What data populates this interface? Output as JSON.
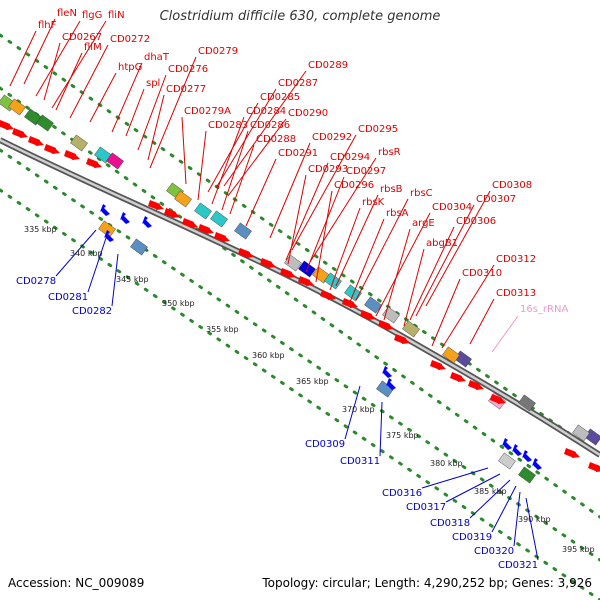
{
  "title": "Clostridium difficile 630, complete genome",
  "footer": {
    "accession": "Accession: NC_009089",
    "summary": "Topology: circular; Length: 4,290,252 bp; Genes: 3,926"
  },
  "colors": {
    "forward_label": "#dd0000",
    "reverse_label": "#0000cc",
    "rrna_label": "#ee99cc",
    "backbone": "#888888",
    "tick_dots": "#2a8a2a",
    "cds_forward": "#ff0000",
    "cds_reverse": "#0000ff"
  },
  "forward_labels": [
    "flhF",
    "fleN",
    "flgG",
    "fliN",
    "CD0267",
    "fliM",
    "CD0272",
    "htpG",
    "dhaT",
    "CD0279",
    "spl",
    "CD0276",
    "CD0277",
    "CD0289",
    "CD0287",
    "CD0285",
    "CD0290",
    "CD0279A",
    "CD0284",
    "CD0283",
    "CD0286",
    "CD0288",
    "CD0291",
    "CD0292",
    "CD0295",
    "CD0294",
    "rbsR",
    "CD0293",
    "CD0297",
    "CD0296",
    "rbsB",
    "rbsK",
    "rbsC",
    "rbsA",
    "CD0304",
    "CD0308",
    "argE",
    "CD0307",
    "CD0306",
    "abgB1",
    "CD0312",
    "CD0310",
    "CD0313"
  ],
  "rrna_labels": [
    "16s_rRNA"
  ],
  "reverse_labels": [
    "CD0278",
    "CD0281",
    "CD0282",
    "CD0309",
    "CD0311",
    "CD0316",
    "CD0317",
    "CD0318",
    "CD0319",
    "CD0320",
    "CD0321"
  ],
  "kbp_ticks": [
    "335 kbp",
    "340 kbp",
    "345 kbp",
    "350 kbp",
    "355 kbp",
    "360 kbp",
    "365 kbp",
    "370 kbp",
    "375 kbp",
    "380 kbp",
    "385 kbp",
    "390 kbp",
    "395 kbp"
  ]
}
